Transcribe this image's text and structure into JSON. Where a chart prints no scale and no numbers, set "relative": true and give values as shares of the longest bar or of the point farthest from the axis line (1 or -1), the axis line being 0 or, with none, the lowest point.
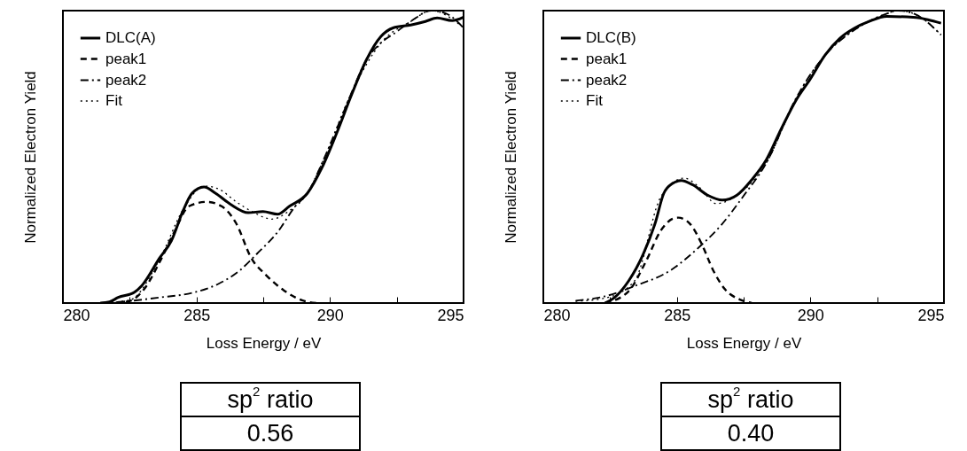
{
  "chart_data": [
    {
      "type": "line",
      "relative": true,
      "xlabel": "Loss Energy / eV",
      "ylabel": "Normalized Electron Yield",
      "xlim": [
        280,
        295
      ],
      "xticks": [
        280,
        {
          "value": 282.5,
          "label": null
        },
        285,
        {
          "value": 287.5,
          "label": null
        },
        290,
        {
          "value": 292.5,
          "label": null
        },
        295
      ],
      "legend": "top left",
      "annotations": [
        "sp$^{2}$ ratio",
        "0.56"
      ],
      "series": [
        {
          "name": "DLC(A)",
          "color": "#000000",
          "line_style": "solid",
          "x": [
            281.4,
            281.74,
            282.07,
            282.68,
            282.95,
            283.62,
            284.06,
            284.5,
            284.83,
            285.28,
            285.72,
            286.27,
            286.94,
            287.49,
            288.04,
            288.48,
            289.15,
            289.7,
            290.25,
            290.81,
            291.36,
            291.91,
            292.36,
            293.02,
            293.57,
            294.01,
            294.57,
            295
          ],
          "values": [
            0,
            0.004,
            0.019,
            0.037,
            0.059,
            0.154,
            0.213,
            0.316,
            0.375,
            0.397,
            0.375,
            0.338,
            0.309,
            0.313,
            0.304,
            0.331,
            0.375,
            0.463,
            0.581,
            0.713,
            0.831,
            0.912,
            0.941,
            0.951,
            0.963,
            0.975,
            0.966,
            0.978
          ]
        },
        {
          "name": "peak1",
          "color": "#000000",
          "line_style": "dashed",
          "x": [
            281.96,
            282.5,
            283.06,
            283.62,
            284.17,
            284.72,
            285.39,
            285.94,
            286.49,
            287.05,
            287.6,
            288.26,
            288.93,
            289.48
          ],
          "values": [
            0,
            0.007,
            0.05,
            0.14,
            0.243,
            0.331,
            0.346,
            0.331,
            0.272,
            0.154,
            0.096,
            0.044,
            0.01,
            0
          ]
        },
        {
          "name": "peak2",
          "color": "#000000",
          "line_style": "dashdot",
          "x": [
            281.4,
            282.5,
            283.62,
            284.94,
            285.83,
            286.6,
            287.27,
            288.04,
            288.7,
            289.15,
            289.7,
            290.25,
            290.81,
            291.36,
            291.91,
            292.47,
            293.02,
            293.8,
            294.35,
            295
          ],
          "values": [
            0,
            0.007,
            0.019,
            0.037,
            0.066,
            0.11,
            0.169,
            0.243,
            0.331,
            0.375,
            0.478,
            0.596,
            0.72,
            0.831,
            0.89,
            0.926,
            0.963,
            1,
            0.99,
            0.941
          ]
        },
        {
          "name": "Fit",
          "color": "#000000",
          "line_style": "dotted",
          "x": [
            281.4,
            282.5,
            283.62,
            284.5,
            285.3,
            285.83,
            286.49,
            287.16,
            287.82,
            288.48,
            289.15,
            289.7,
            290.81,
            291.91,
            293.02,
            293.8,
            295
          ],
          "values": [
            0,
            0.01,
            0.15,
            0.32,
            0.4,
            0.39,
            0.346,
            0.309,
            0.287,
            0.316,
            0.375,
            0.478,
            0.72,
            0.89,
            0.963,
            1,
            0.941
          ]
        }
      ]
    },
    {
      "type": "line",
      "relative": true,
      "xlabel": "Loss Energy / eV",
      "ylabel": "Normalized Electron Yield",
      "xlim": [
        280,
        295
      ],
      "xticks": [
        280,
        {
          "value": 282.5,
          "label": null
        },
        285,
        {
          "value": 287.5,
          "label": null
        },
        290,
        {
          "value": 292.5,
          "label": null
        },
        295
      ],
      "legend": "top left",
      "annotations": [
        "sp$^{2}$ ratio",
        "0.40"
      ],
      "series": [
        {
          "name": "DLC(B)",
          "color": "#000000",
          "line_style": "solid",
          "x": [
            282.31,
            282.64,
            283.19,
            283.74,
            284.18,
            284.51,
            284.84,
            285.16,
            285.6,
            286.15,
            286.7,
            287.25,
            287.8,
            288.35,
            288.9,
            289.45,
            290,
            290.55,
            291.1,
            291.65,
            292.2,
            292.86,
            293.85,
            294.4,
            294.89
          ],
          "values": [
            0,
            0.017,
            0.075,
            0.167,
            0.271,
            0.375,
            0.409,
            0.419,
            0.404,
            0.369,
            0.352,
            0.369,
            0.421,
            0.49,
            0.594,
            0.692,
            0.767,
            0.848,
            0.905,
            0.94,
            0.963,
            0.98,
            0.977,
            0.969,
            0.957
          ]
        },
        {
          "name": "peak1",
          "color": "#000000",
          "line_style": "dashed",
          "x": [
            282.31,
            283.19,
            283.85,
            284.4,
            284.84,
            285.05,
            285.49,
            285.93,
            286.37,
            286.81,
            287.36,
            287.8
          ],
          "values": [
            0,
            0.04,
            0.144,
            0.248,
            0.288,
            0.292,
            0.271,
            0.202,
            0.11,
            0.046,
            0.012,
            0
          ]
        },
        {
          "name": "peak2",
          "color": "#000000",
          "line_style": "dashdot",
          "x": [
            281.21,
            282.31,
            283.41,
            284.73,
            285.82,
            286.7,
            287.47,
            288.35,
            289.45,
            290.55,
            291.65,
            292.75,
            293.3,
            293.96,
            294.89
          ],
          "values": [
            0.008,
            0.023,
            0.058,
            0.11,
            0.19,
            0.271,
            0.363,
            0.479,
            0.698,
            0.848,
            0.934,
            0.986,
            1,
            0.986,
            0.917
          ]
        },
        {
          "name": "Fit",
          "color": "#000000",
          "line_style": "dotted",
          "x": [
            281.21,
            282.31,
            283.41,
            284.4,
            285.27,
            285.82,
            286.48,
            287.25,
            288.35,
            289.45,
            290.55,
            291.65,
            292.75,
            293.3,
            293.96,
            294.89
          ],
          "values": [
            0.006,
            0.017,
            0.075,
            0.363,
            0.427,
            0.398,
            0.34,
            0.369,
            0.479,
            0.698,
            0.848,
            0.934,
            0.986,
            1,
            0.986,
            0.917
          ]
        }
      ]
    }
  ]
}
